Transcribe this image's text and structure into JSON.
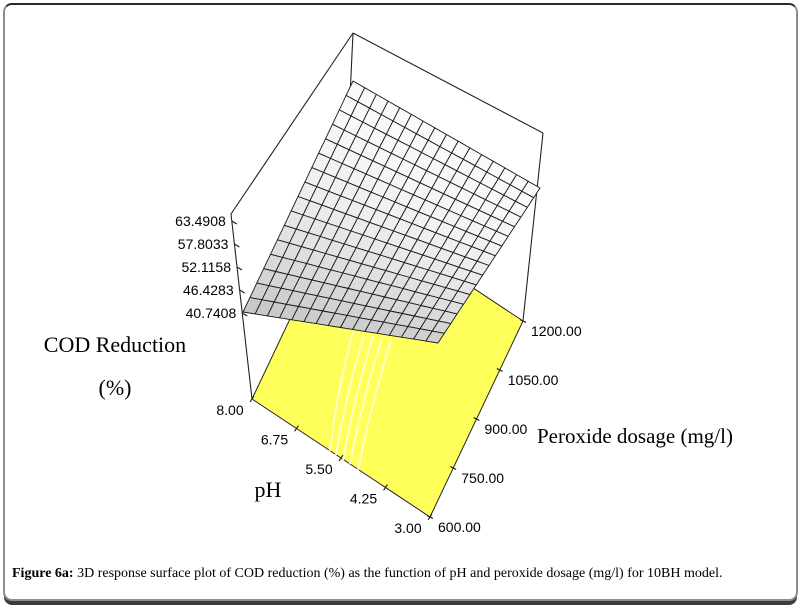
{
  "figure": {
    "caption_prefix": "Figure 6a:",
    "caption_body": " 3D response surface plot of COD reduction (%) as the function of pH and peroxide dosage (mg/l) for 10BH model."
  },
  "chart_data": {
    "type": "surface3d",
    "title": "",
    "x_axis": {
      "label": "pH",
      "ticks": [
        "8.00",
        "6.75",
        "5.50",
        "4.25",
        "3.00"
      ],
      "range": [
        8,
        3
      ]
    },
    "y_axis": {
      "label": "Peroxide dosage (mg/l)",
      "ticks": [
        "600.00",
        "750.00",
        "900.00",
        "1050.00",
        "1200.00"
      ],
      "range": [
        600,
        1200
      ]
    },
    "z_axis": {
      "label": "COD Reduction (%)",
      "label_lines": [
        "COD Reduction",
        "(%)"
      ],
      "ticks": [
        "63.4908",
        "57.8033",
        "52.1158",
        "46.4283",
        "40.7408"
      ],
      "range": [
        40.7408,
        63.4908
      ]
    },
    "surface_corner_z": {
      "pH8_dose600": 40.7408,
      "pH3_dose600": 63.4908,
      "pH8_dose1200": 49.0,
      "pH3_dose1200": 52.0
    },
    "grid_divisions": 16,
    "floor_contour_count": 5,
    "legend": "none",
    "colors": {
      "floor": "#ffff5c",
      "contour": "#ffffc8",
      "mesh_light": "#fcfcfc",
      "mesh_dark": "#c6c6c6",
      "line": "#1a1a1a"
    }
  }
}
